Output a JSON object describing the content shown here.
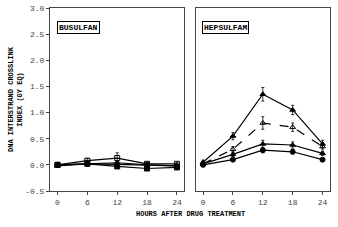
{
  "chart_data": [
    {
      "type": "line",
      "title": "BUSULFAN",
      "xlabel": "HOURS AFTER DRUG TREATMENT",
      "ylabel": [
        "DNA INTERSTRAND CROSSLINK",
        "INDEX (GY EQ)"
      ],
      "x": [
        0,
        6,
        12,
        18,
        24
      ],
      "xlim": [
        -1.5,
        25.5
      ],
      "xticks": [
        0,
        6,
        12,
        18,
        24
      ],
      "ylim": [
        -0.5,
        3.0
      ],
      "yticks": [
        -0.5,
        {
          "value": 0.0,
          "label": "0.0"
        },
        0.5,
        {
          "value": 1.0,
          "label": "1.0"
        },
        1.5,
        {
          "value": 2.0,
          "label": "2.0"
        },
        2.5,
        {
          "value": 3.0,
          "label": "3.0"
        }
      ],
      "grid": false,
      "series": [
        {
          "marker": "triangle-up",
          "line_style": "solid",
          "color": "#000000",
          "values": [
            -0.02,
            0.02,
            0.04,
            0.0,
            -0.02
          ],
          "errors": [
            0.02,
            0.02,
            0.03,
            0.02,
            0.02
          ]
        },
        {
          "marker": "circle",
          "line_style": "solid",
          "color": "#000000",
          "values": [
            0.0,
            0.02,
            0.01,
            0.0,
            -0.02
          ],
          "errors": [
            0.02,
            0.02,
            0.02,
            0.02,
            0.02
          ]
        },
        {
          "marker": "square",
          "line_style": "solid",
          "color": "#000000",
          "values": [
            0.0,
            0.02,
            -0.03,
            -0.07,
            -0.05
          ],
          "errors": [
            0.03,
            0.02,
            0.03,
            0.03,
            0.03
          ]
        },
        {
          "marker": "square-open",
          "line_style": "solid",
          "color": "#000000",
          "values": [
            0.0,
            0.08,
            0.13,
            0.02,
            0.02
          ],
          "errors": [
            0.04,
            0.04,
            0.1,
            0.03,
            0.03
          ]
        }
      ]
    },
    {
      "type": "line",
      "title": "HEPSULFAM",
      "x": [
        0,
        6,
        12,
        18,
        24
      ],
      "xlim": [
        -1.5,
        25.5
      ],
      "xticks": [
        0,
        6,
        12,
        18,
        24
      ],
      "ylim": [
        -0.5,
        3.0
      ],
      "yticks": [
        -0.5,
        {
          "value": 0.0,
          "label": "0.0"
        },
        0.5,
        {
          "value": 1.0,
          "label": "1.0"
        },
        1.5,
        {
          "value": 2.0,
          "label": "2.0"
        },
        2.5,
        {
          "value": 3.0,
          "label": "3.0"
        }
      ],
      "grid": false,
      "tick_labels": "x",
      "series": [
        {
          "marker": "circle",
          "line_style": "solid",
          "color": "#000000",
          "values": [
            0.0,
            0.1,
            0.28,
            0.25,
            0.1
          ],
          "errors": [
            0.02,
            0.03,
            0.05,
            0.04,
            0.03
          ]
        },
        {
          "marker": "triangle-up",
          "line_style": "solid",
          "color": "#000000",
          "values": [
            0.02,
            0.2,
            0.4,
            0.38,
            0.22
          ],
          "errors": [
            0.03,
            0.04,
            0.07,
            0.06,
            0.04
          ]
        },
        {
          "marker": "triangle-up-open",
          "line_style": "dashed",
          "color": "#000000",
          "values": [
            0.02,
            0.3,
            0.8,
            0.72,
            0.35
          ],
          "errors": [
            0.03,
            0.05,
            0.12,
            0.08,
            0.05
          ]
        },
        {
          "marker": "triangle-up",
          "line_style": "solid",
          "color": "#000000",
          "values": [
            0.05,
            0.55,
            1.35,
            1.05,
            0.4
          ],
          "errors": [
            0.04,
            0.07,
            0.13,
            0.09,
            0.07
          ]
        }
      ]
    }
  ]
}
